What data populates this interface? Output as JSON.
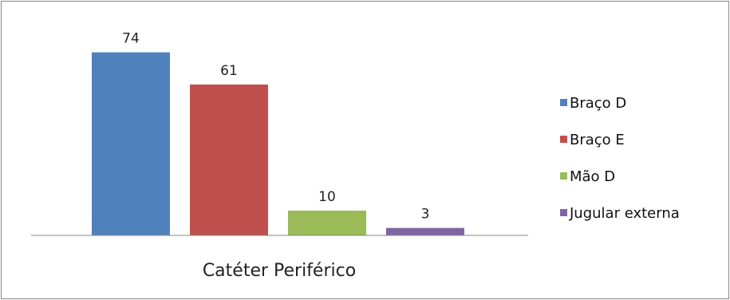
{
  "chart_data": {
    "type": "bar",
    "title": "",
    "xlabel": "",
    "ylabel": "",
    "categories": [
      "Catéter Periférico"
    ],
    "series": [
      {
        "name": "Braço D",
        "values": [
          74
        ],
        "color": "#4f81bd"
      },
      {
        "name": "Braço E",
        "values": [
          61
        ],
        "color": "#c0504d"
      },
      {
        "name": "Mão D",
        "values": [
          10
        ],
        "color": "#9bbb59"
      },
      {
        "name": "Jugular externa",
        "values": [
          3
        ],
        "color": "#8064a2"
      }
    ],
    "ylim": [
      0,
      80
    ],
    "grid": false,
    "legend_position": "right",
    "data_labels": true
  }
}
